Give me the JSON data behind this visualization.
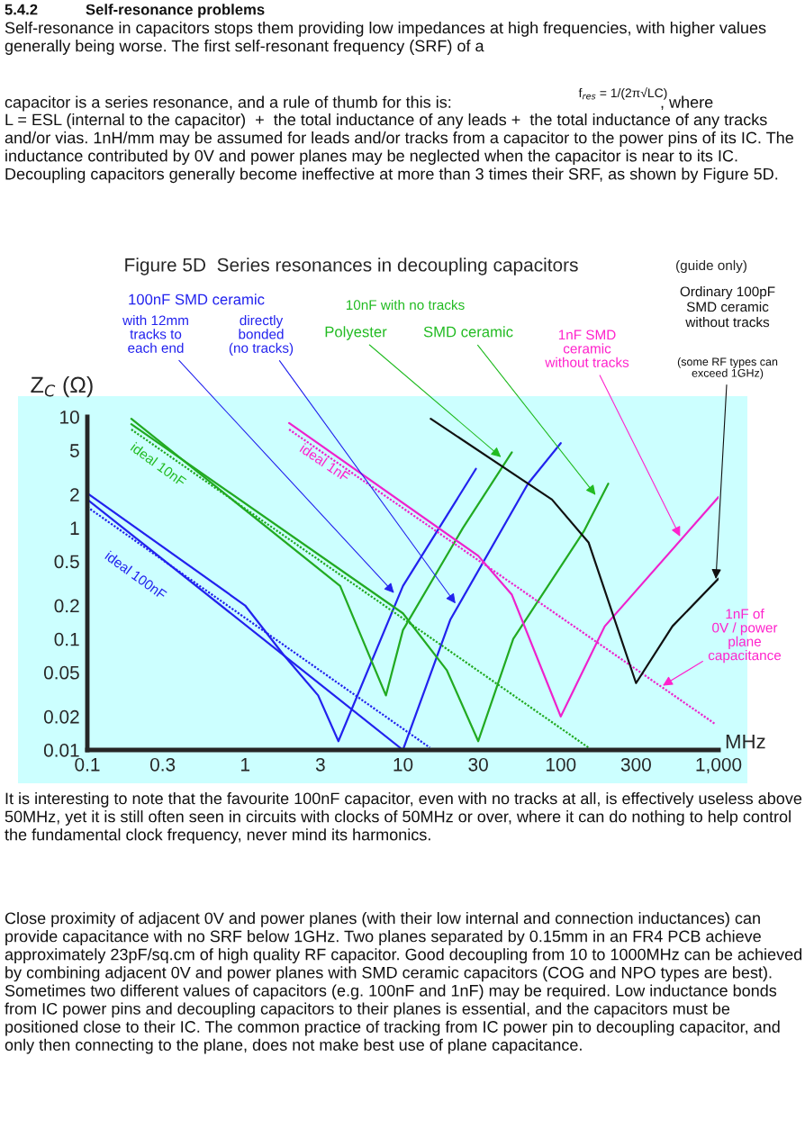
{
  "chart_data": {
    "type": "line",
    "title": "Figure 5D  Series resonances in decoupling capacitors",
    "subtitle": "(guide only)",
    "xlabel": "MHz",
    "ylabel": "Z$_{C}$ (Ω)",
    "log": "xy",
    "xlim": [
      0.1,
      1000
    ],
    "ylim": [
      0.01,
      10
    ],
    "xticks": [
      0.1,
      0.3,
      1,
      3,
      10,
      30,
      100,
      300,
      {
        "value": 1000,
        "label": "1,000"
      }
    ],
    "yticks": [
      0.01,
      0.02,
      0.05,
      0.1,
      0.2,
      0.5,
      1,
      2,
      5,
      10
    ],
    "series": [
      {
        "color": "#2222ee",
        "x": [
          0.1,
          1,
          1.75,
          2.9,
          3.9,
          10,
          29
        ],
        "values": [
          2.05,
          0.2,
          0.072,
          0.031,
          0.012,
          0.3,
          3.4
        ]
      },
      {
        "color": "#2222ee",
        "x": [
          0.1,
          10,
          20,
          62,
          100
        ],
        "values": [
          1.8,
          0.01,
          0.15,
          2.5,
          5.8
        ]
      },
      {
        "color": "#2222ee",
        "line_style": "dotted",
        "x": [
          0.1,
          14.8
        ],
        "values": [
          1.54,
          0.0105
        ]
      },
      {
        "color": "#22aa22",
        "x": [
          0.19,
          4,
          7.8,
          10,
          24,
          49
        ],
        "values": [
          9.6,
          0.3,
          0.031,
          0.12,
          1,
          4.8
        ]
      },
      {
        "color": "#22aa22",
        "x": [
          0.19,
          10,
          19,
          30,
          50,
          140,
          200
        ],
        "values": [
          8.6,
          0.17,
          0.052,
          0.012,
          0.1,
          0.93,
          2.5
        ]
      },
      {
        "color": "#22aa22",
        "line_style": "dotted",
        "x": [
          0.19,
          150
        ],
        "values": [
          7.7,
          0.0105
        ]
      },
      {
        "color": "#ee22cc",
        "x": [
          1.9,
          30,
          49,
          100,
          190,
          1000
        ],
        "values": [
          8.8,
          0.56,
          0.25,
          0.02,
          0.13,
          1.9
        ]
      },
      {
        "color": "#ee22cc",
        "line_style": "dotted",
        "x": [
          1.9,
          960
        ],
        "values": [
          7.7,
          0.017
        ]
      },
      {
        "color": "#111111",
        "x": [
          15,
          88,
          150,
          300,
          510,
          1000
        ],
        "values": [
          9.6,
          1.8,
          0.74,
          0.04,
          0.13,
          0.35
        ]
      }
    ],
    "annotations": [
      "5.4.2",
      "Self-resonance problems",
      "Self-resonance in capacitors stops them providing low impedances at high frequencies, with higher values generally being worse. The first self-resonant frequency (SRF) of a",
      "capacitor is a series resonance, and a rule of thumb for this is:",
      "f$_{res}$ = 1/(2π√LC)",
      ", where",
      "L = ESL (internal to the capacitor)  +  the total inductance of any leads +  the total inductance of any tracks and/or vias. 1nH/mm may be assumed for leads and/or tracks from a capacitor to the power pins of its IC. The inductance contributed by 0V and power planes may be neglected when the capacitor is near to its IC. Decoupling capacitors generally become ineffective at more than 3 times their SRF, as shown by Figure 5D.",
      "100nF SMD ceramic",
      {
        "text": "with 12mm\ntracks to\neach end",
        "x": 9,
        "y": 0.25
      },
      {
        "text": "directly\nbonded\n(no tracks)",
        "x": 22,
        "y": 0.2
      },
      "10nF with no tracks",
      {
        "text": "Polyester",
        "x": 43,
        "y": 4.2
      },
      {
        "text": "SMD ceramic",
        "x": 170,
        "y": 1.9
      },
      {
        "text": "1nF SMD\nceramic\nwithout tracks",
        "x": 580,
        "y": 0.8
      },
      "Ordinary 100pF\nSMD ceramic\nwithout tracks",
      {
        "text": "(some RF types can\nexceed 1GHz)",
        "x": 960,
        "y": 0.33
      },
      {
        "text": "1nF of\n0V / power\nplane\ncapacitance",
        "x": 430,
        "y": 0.037
      },
      "ideal 10nF",
      "ideal 100nF",
      "ideal 1nF",
      "It is interesting to note that the favourite 100nF capacitor, even with no tracks at all, is effectively useless above 50MHz, yet it is still often seen in circuits with clocks of 50MHz or over, where it can do nothing to help control the fundamental clock frequency, never mind its harmonics.",
      "Close proximity of adjacent 0V and power planes (with their low internal and connection inductances) can provide capacitance with no SRF below 1GHz. Two planes separated by 0.15mm in an FR4 PCB achieve approximately 23pF/sq.cm of high quality RF capacitor. Good decoupling from 10 to 1000MHz can be achieved by combining adjacent 0V and power planes with SMD ceramic capacitors (COG and NPO types are best). Sometimes two different values of capacitors (e.g. 100nF and 1nF) may be required. Low inductance bonds from IC power pins and decoupling capacitors to their planes is essential, and the capacitors must be positioned close to their IC. The common practice of tracking from IC power pin to decoupling capacitor, and only then connecting to the plane, does not make best use of plane capacitance."
    ]
  }
}
